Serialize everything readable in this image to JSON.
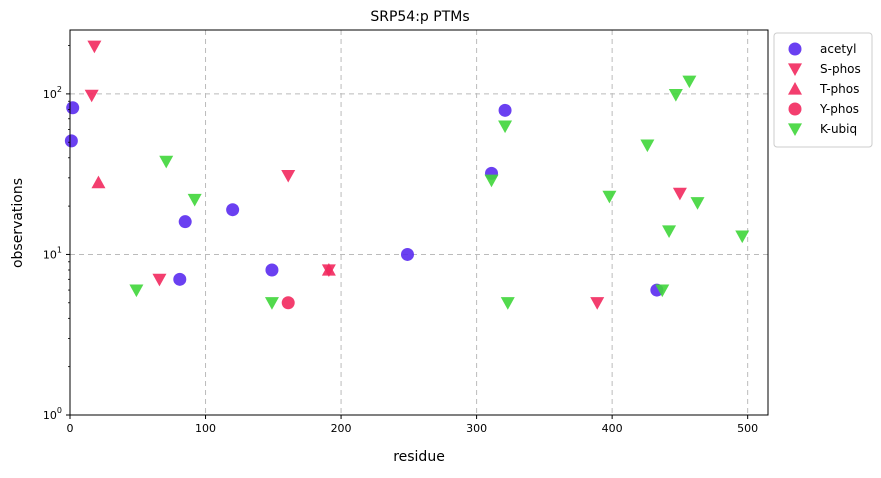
{
  "chart_data": {
    "type": "scatter",
    "title": "SRP54:p PTMs",
    "xlabel": "residue",
    "ylabel": "observations",
    "xlim": [
      0,
      515
    ],
    "ylim": [
      1,
      250
    ],
    "yscale": "log",
    "grid": true,
    "legend_position": "outside-top-right",
    "x_ticks": [
      {
        "value": 0,
        "label": "0"
      },
      {
        "value": 100,
        "label": "100"
      },
      {
        "value": 200,
        "label": "200"
      },
      {
        "value": 300,
        "label": "300"
      },
      {
        "value": 400,
        "label": "400"
      },
      {
        "value": 500,
        "label": "500"
      }
    ],
    "y_ticks": [
      {
        "value": 1,
        "base": "10",
        "exp": "0"
      },
      {
        "value": 10,
        "base": "10",
        "exp": "1"
      },
      {
        "value": 100,
        "base": "10",
        "exp": "2"
      }
    ],
    "series": [
      {
        "name": "acetyl",
        "marker": "circle",
        "color": "#5a2bf0",
        "points": [
          [
            1,
            51
          ],
          [
            2,
            82
          ],
          [
            81,
            7
          ],
          [
            85,
            16
          ],
          [
            120,
            19
          ],
          [
            149,
            8
          ],
          [
            249,
            10
          ],
          [
            311,
            32
          ],
          [
            321,
            79
          ],
          [
            433,
            6
          ]
        ]
      },
      {
        "name": "S-phos",
        "marker": "triangle-down",
        "color": "#f2295e",
        "points": [
          [
            16,
            98
          ],
          [
            18,
            198
          ],
          [
            66,
            7
          ],
          [
            161,
            31
          ],
          [
            191,
            8
          ],
          [
            389,
            5
          ],
          [
            450,
            24
          ]
        ]
      },
      {
        "name": "T-phos",
        "marker": "triangle-up",
        "color": "#f2295e",
        "points": [
          [
            21,
            28
          ],
          [
            191,
            8
          ]
        ]
      },
      {
        "name": "Y-phos",
        "marker": "circle",
        "color": "#f2295e",
        "points": [
          [
            161,
            5
          ]
        ]
      },
      {
        "name": "K-ubiq",
        "marker": "triangle-down",
        "color": "#3fd63a",
        "points": [
          [
            49,
            6
          ],
          [
            71,
            38
          ],
          [
            92,
            22
          ],
          [
            149,
            5
          ],
          [
            311,
            29
          ],
          [
            321,
            63
          ],
          [
            323,
            5
          ],
          [
            398,
            23
          ],
          [
            426,
            48
          ],
          [
            437,
            6
          ],
          [
            442,
            14
          ],
          [
            447,
            99
          ],
          [
            457,
            120
          ],
          [
            463,
            21
          ],
          [
            496,
            13
          ]
        ]
      }
    ]
  }
}
